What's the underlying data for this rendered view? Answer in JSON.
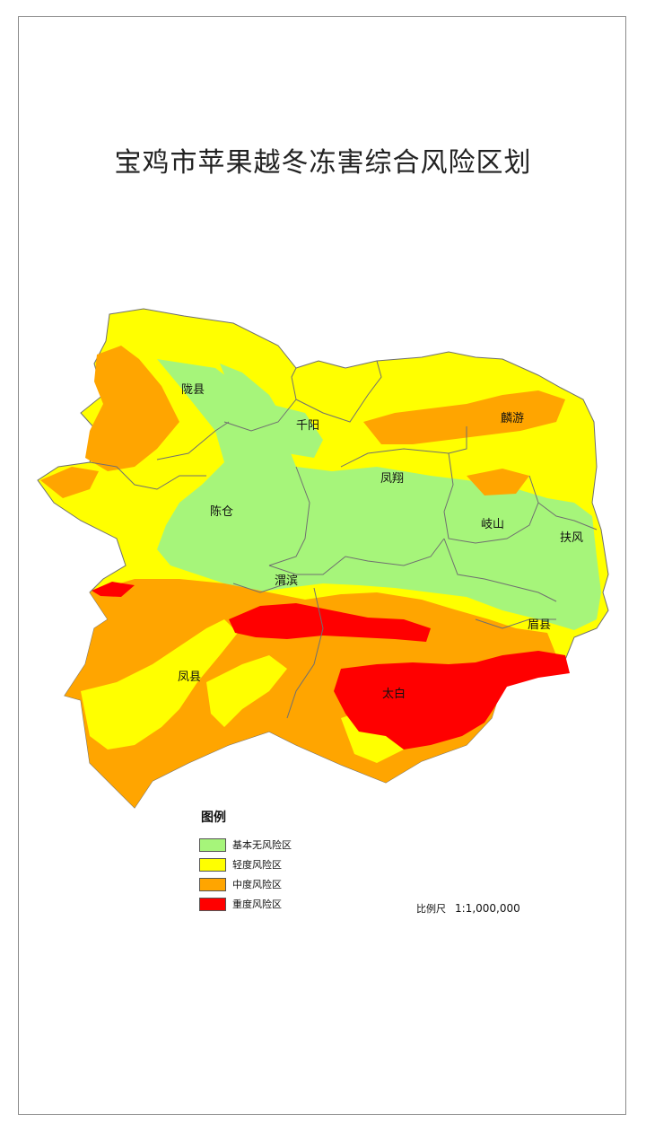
{
  "map": {
    "title": "宝鸡市苹果越冬冻害综合风险区划",
    "counties": [
      {
        "id": "longxian",
        "name": "陇县"
      },
      {
        "id": "qianyang",
        "name": "千阳"
      },
      {
        "id": "linyou",
        "name": "麟游"
      },
      {
        "id": "fengxiang",
        "name": "凤翔"
      },
      {
        "id": "chencang",
        "name": "陈仓"
      },
      {
        "id": "qishan",
        "name": "岐山"
      },
      {
        "id": "fufeng",
        "name": "扶风"
      },
      {
        "id": "weibin",
        "name": "渭滨"
      },
      {
        "id": "meixian",
        "name": "眉县"
      },
      {
        "id": "fengxian",
        "name": "凤县"
      },
      {
        "id": "taibai",
        "name": "太白"
      }
    ],
    "legend": {
      "title": "图例",
      "items": [
        {
          "label": "基本无风险区",
          "color": "#a6f57a"
        },
        {
          "label": "轻度风险区",
          "color": "#ffff00"
        },
        {
          "label": "中度风险区",
          "color": "#ffa500"
        },
        {
          "label": "重度风险区",
          "color": "#ff0000"
        }
      ]
    },
    "scale": {
      "label": "比例尺",
      "value": "1:1,000,000"
    }
  }
}
